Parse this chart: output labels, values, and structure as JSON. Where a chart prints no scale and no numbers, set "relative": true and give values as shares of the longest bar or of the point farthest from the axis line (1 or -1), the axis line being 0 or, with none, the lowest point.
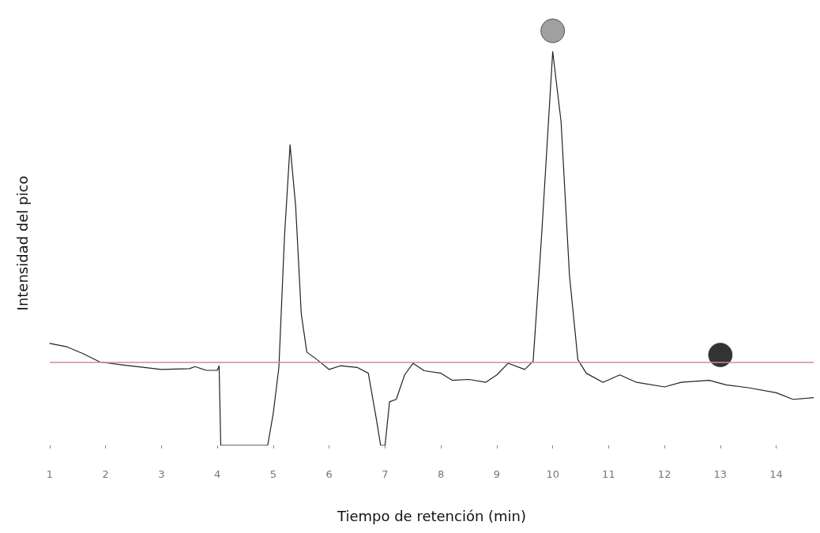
{
  "chart_data": {
    "type": "line",
    "xlabel": "Tiempo de retención (min)",
    "ylabel": "Intensidad del pico",
    "relative": true,
    "xlim": [
      1,
      14.67
    ],
    "xticks": [
      1,
      2,
      3,
      4,
      5,
      6,
      7,
      8,
      9,
      10,
      11,
      12,
      13,
      14
    ],
    "grid": false,
    "marker": "none",
    "line_style": "solid",
    "ref_lines": [
      {
        "axis": "y",
        "value": 0.2,
        "color": "#c89090"
      }
    ],
    "series": [
      {
        "color": "#222222",
        "x": [
          1,
          1.3,
          1.6,
          1.9,
          2.3,
          3,
          3.5,
          3.6,
          3.8,
          4.0,
          4.03,
          4.06,
          4.9,
          5.0,
          5.1,
          5.2,
          5.3,
          5.4,
          5.5,
          5.6,
          5.8,
          6.0,
          6.2,
          6.5,
          6.7,
          6.85,
          6.92,
          7.0,
          7.08,
          7.2,
          7.35,
          7.5,
          7.7,
          8,
          8.2,
          8.5,
          8.8,
          9.0,
          9.2,
          9.5,
          9.65,
          9.8,
          10.0,
          10.15,
          10.3,
          10.45,
          10.6,
          10.9,
          11.2,
          11.5,
          12,
          12.3,
          12.8,
          13.1,
          13.5,
          14,
          14.3,
          14.67
        ],
        "values": [
          0.246,
          0.238,
          0.221,
          0.201,
          0.194,
          0.183,
          0.185,
          0.19,
          0.181,
          0.181,
          0.192,
          0,
          0,
          0.078,
          0.188,
          0.503,
          0.725,
          0.577,
          0.318,
          0.225,
          0.205,
          0.183,
          0.192,
          0.188,
          0.174,
          0.059,
          0,
          0,
          0.105,
          0.111,
          0.17,
          0.198,
          0.18,
          0.174,
          0.157,
          0.159,
          0.152,
          0.17,
          0.198,
          0.183,
          0.203,
          0.503,
          0.95,
          0.78,
          0.41,
          0.207,
          0.174,
          0.152,
          0.17,
          0.152,
          0.141,
          0.152,
          0.157,
          0.146,
          0.139,
          0.127,
          0.111,
          0.115
        ]
      },
      {
        "type": "scatter",
        "marker": "circle",
        "color": "#888888",
        "x": [
          10
        ],
        "values": [
          1
        ]
      },
      {
        "type": "scatter",
        "marker": "circle",
        "color": "#000000",
        "x": [
          13
        ],
        "values": [
          0.218
        ]
      }
    ]
  }
}
